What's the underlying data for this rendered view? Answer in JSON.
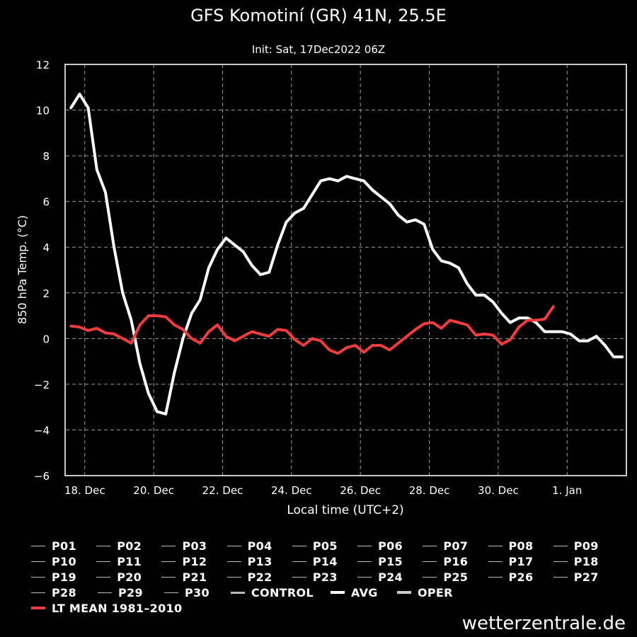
{
  "chart_data": {
    "type": "line",
    "title": "GFS Komotiní (GR) 41N, 25.5E",
    "subtitle": "Init: Sat, 17Dec2022 06Z",
    "xlabel": "Local time (UTC+2)",
    "ylabel": "850 hPa Temp. (°C)",
    "ylim": [
      -6,
      12
    ],
    "yticks": [
      -6,
      -4,
      -2,
      0,
      2,
      4,
      6,
      8,
      10,
      12
    ],
    "xticks": [
      {
        "label": "18. Dec",
        "day": 1
      },
      {
        "label": "20. Dec",
        "day": 3
      },
      {
        "label": "22. Dec",
        "day": 5
      },
      {
        "label": "24. Dec",
        "day": 7
      },
      {
        "label": "26. Dec",
        "day": 9
      },
      {
        "label": "28. Dec",
        "day": 11
      },
      {
        "label": "30. Dec",
        "day": 13
      },
      {
        "label": "1. Jan",
        "day": 15
      }
    ],
    "x_range_days": [
      0.45,
      16.7
    ],
    "grid": true,
    "series": [
      {
        "name": "AVG",
        "color": "#ffffff",
        "x": [
          0.6,
          0.85,
          1.1,
          1.35,
          1.6,
          1.85,
          2.1,
          2.35,
          2.6,
          2.85,
          3.1,
          3.35,
          3.6,
          3.85,
          4.1,
          4.35,
          4.6,
          4.85,
          5.1,
          5.35,
          5.6,
          5.85,
          6.1,
          6.35,
          6.6,
          6.85,
          7.1,
          7.35,
          7.6,
          7.85,
          8.1,
          8.35,
          8.6,
          8.85,
          9.1,
          9.35,
          9.6,
          9.85,
          10.1,
          10.35,
          10.6,
          10.85,
          11.1,
          11.35,
          11.6,
          11.85,
          12.1,
          12.35,
          12.6,
          12.85,
          13.1,
          13.35,
          13.6,
          13.85,
          14.1,
          14.35,
          14.6,
          14.85,
          15.1,
          15.35,
          15.6,
          15.85,
          16.1,
          16.35,
          16.6
        ],
        "values": [
          10.1,
          10.7,
          10.1,
          7.4,
          6.4,
          4.0,
          2.0,
          0.8,
          -1.1,
          -2.4,
          -3.2,
          -3.3,
          -1.5,
          0,
          1.1,
          1.7,
          3.1,
          3.9,
          4.4,
          4.1,
          3.8,
          3.2,
          2.8,
          2.9,
          4.1,
          5.1,
          5.5,
          5.7,
          6.3,
          6.9,
          7.0,
          6.9,
          7.1,
          7.0,
          6.9,
          6.5,
          6.2,
          5.9,
          5.4,
          5.1,
          5.2,
          5.0,
          3.9,
          3.4,
          3.3,
          3.1,
          2.4,
          1.9,
          1.9,
          1.6,
          1.1,
          0.7,
          0.9,
          0.9,
          0.7,
          0.3,
          0.3,
          0.3,
          0.2,
          -0.1,
          -0.1,
          0.1,
          -0.3,
          -0.8,
          -0.8
        ]
      },
      {
        "name": "LT MEAN 1981–2010",
        "color": "#f03c3c",
        "x": [
          0.6,
          0.85,
          1.1,
          1.35,
          1.6,
          1.85,
          2.1,
          2.35,
          2.6,
          2.85,
          3.1,
          3.35,
          3.6,
          3.85,
          4.1,
          4.35,
          4.6,
          4.85,
          5.1,
          5.35,
          5.6,
          5.85,
          6.1,
          6.35,
          6.6,
          6.85,
          7.1,
          7.35,
          7.6,
          7.85,
          8.1,
          8.35,
          8.6,
          8.85,
          9.1,
          9.35,
          9.6,
          9.85,
          10.1,
          10.35,
          10.6,
          10.85,
          11.1,
          11.35,
          11.6,
          11.85,
          12.1,
          12.35,
          12.6,
          12.85,
          13.1,
          13.35,
          13.6,
          13.85,
          14.1,
          14.35,
          14.6
        ],
        "values": [
          0.55,
          0.5,
          0.35,
          0.45,
          0.25,
          0.2,
          0,
          -0.2,
          0.6,
          1.0,
          1.0,
          0.95,
          0.6,
          0.4,
          0,
          -0.2,
          0.3,
          0.6,
          0.1,
          -0.1,
          0.1,
          0.3,
          0.2,
          0.1,
          0.4,
          0.35,
          -0.05,
          -0.3,
          0,
          -0.1,
          -0.5,
          -0.65,
          -0.4,
          -0.3,
          -0.6,
          -0.3,
          -0.3,
          -0.5,
          -0.2,
          0.1,
          0.4,
          0.65,
          0.7,
          0.45,
          0.8,
          0.7,
          0.6,
          0.15,
          0.2,
          0.15,
          -0.25,
          -0.05,
          0.5,
          0.8,
          0.8,
          0.85,
          1.4
        ]
      }
    ]
  },
  "legend": {
    "rows": [
      [
        "P01",
        "P02",
        "P03",
        "P04",
        "P05",
        "P06",
        "P07",
        "P08",
        "P09"
      ],
      [
        "P10",
        "P11",
        "P12",
        "P13",
        "P14",
        "P15",
        "P16",
        "P17",
        "P18"
      ],
      [
        "P19",
        "P20",
        "P21",
        "P22",
        "P23",
        "P24",
        "P25",
        "P26",
        "P27"
      ]
    ],
    "row4": {
      "p28": "P28",
      "p29": "P29",
      "p30": "P30",
      "control": "CONTROL",
      "avg": "AVG",
      "oper": "OPER"
    },
    "lt_mean": "LT MEAN 1981–2010",
    "colors": {
      "member": "#bbbbbb",
      "control": "#bbbbbb",
      "avg": "#ffffff",
      "oper": "#cccccc",
      "lt_mean": "#f03c3c"
    }
  },
  "brand": "wetterzentrale.de"
}
